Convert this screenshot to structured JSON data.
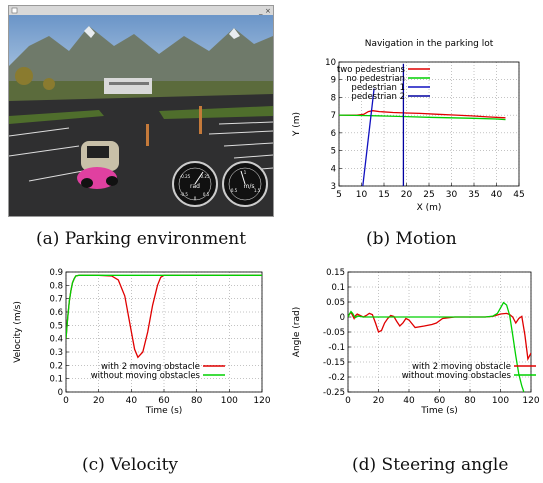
{
  "captions": {
    "a": "(a) Parking environment",
    "b": "(b) Motion",
    "c": "(c) Velocity",
    "d": "(d) Steering angle"
  },
  "sim": {
    "gauge_left": {
      "unit": "rad",
      "ticks": [
        "-0.25",
        "0.25",
        "-0.5",
        "0.5",
        "0"
      ]
    },
    "gauge_right": {
      "unit": "m/s",
      "ticks": [
        "1",
        "0.5",
        "1.5"
      ]
    }
  },
  "colors": {
    "red": "#e00000",
    "green": "#00d000",
    "blue": "#1010c0",
    "navy": "#0000a0"
  },
  "chart_data": [
    {
      "id": "motion",
      "type": "line",
      "title": "Navigation in the parking lot",
      "xlabel": "X (m)",
      "ylabel": "Y (m)",
      "xlim": [
        5,
        45
      ],
      "ylim": [
        3,
        10
      ],
      "xticks": [
        5,
        10,
        15,
        20,
        25,
        30,
        35,
        40,
        45
      ],
      "yticks": [
        3,
        4,
        5,
        6,
        7,
        8,
        9,
        10
      ],
      "grid": true,
      "legend": "top-right",
      "series": [
        {
          "name": "two pedestrians",
          "color": "#e00000",
          "x": [
            5,
            9,
            10.5,
            11.5,
            12.5,
            14,
            17,
            20,
            23,
            27,
            31,
            35,
            38,
            42
          ],
          "y": [
            7.0,
            7.0,
            7.05,
            7.2,
            7.25,
            7.2,
            7.15,
            7.12,
            7.1,
            7.05,
            7.0,
            6.95,
            6.9,
            6.85
          ]
        },
        {
          "name": "no pedestrian",
          "color": "#00d000",
          "x": [
            5,
            10,
            15,
            20,
            25,
            30,
            35,
            40,
            42
          ],
          "y": [
            7.0,
            6.98,
            6.95,
            6.92,
            6.88,
            6.85,
            6.82,
            6.78,
            6.75
          ]
        },
        {
          "name": "pedestrian 1",
          "color": "#1010c0",
          "x": [
            10.3,
            12.8
          ],
          "y": [
            3.0,
            8.5
          ]
        },
        {
          "name": "pedestrian 2",
          "color": "#0000a0",
          "x": [
            19.3,
            19.3
          ],
          "y": [
            3.0,
            9.9
          ]
        }
      ]
    },
    {
      "id": "velocity",
      "type": "line",
      "xlabel": "Time (s)",
      "ylabel": "Velocity (m/s)",
      "xlim": [
        0,
        120
      ],
      "ylim": [
        0,
        0.9
      ],
      "xticks": [
        0,
        20,
        40,
        60,
        80,
        100,
        120
      ],
      "yticks": [
        0,
        0.1,
        0.2,
        0.3,
        0.4,
        0.5,
        0.6,
        0.7,
        0.8,
        0.9
      ],
      "grid": true,
      "legend": "bottom-right",
      "series": [
        {
          "name": "with 2 moving obstacle",
          "color": "#e00000",
          "x": [
            0,
            1,
            2,
            3,
            4,
            5,
            6,
            8,
            10,
            20,
            28,
            32,
            36,
            39,
            42,
            44,
            47,
            50,
            53,
            56,
            58,
            60,
            70,
            80,
            90,
            100,
            110,
            120
          ],
          "y": [
            0.4,
            0.55,
            0.68,
            0.76,
            0.82,
            0.85,
            0.87,
            0.875,
            0.875,
            0.875,
            0.87,
            0.84,
            0.72,
            0.52,
            0.32,
            0.26,
            0.3,
            0.45,
            0.65,
            0.8,
            0.86,
            0.875,
            0.875,
            0.875,
            0.875,
            0.875,
            0.875,
            0.875
          ]
        },
        {
          "name": "without moving obstacles",
          "color": "#00d000",
          "x": [
            0,
            1,
            2,
            3,
            4,
            5,
            6,
            8,
            10,
            20,
            40,
            60,
            80,
            100,
            120
          ],
          "y": [
            0.4,
            0.55,
            0.68,
            0.76,
            0.82,
            0.85,
            0.87,
            0.875,
            0.875,
            0.875,
            0.875,
            0.875,
            0.875,
            0.875,
            0.875
          ]
        }
      ]
    },
    {
      "id": "steering",
      "type": "line",
      "xlabel": "Time (s)",
      "ylabel": "Angle (rad)",
      "xlim": [
        0,
        120
      ],
      "ylim": [
        -0.25,
        0.15
      ],
      "xticks": [
        0,
        20,
        40,
        60,
        80,
        100,
        120
      ],
      "yticks": [
        -0.25,
        -0.2,
        -0.15,
        -0.1,
        -0.05,
        0,
        0.05,
        0.1,
        0.15
      ],
      "grid": true,
      "legend": "bottom-right",
      "series": [
        {
          "name": "with 2 moving obstacle",
          "color": "#e00000",
          "x": [
            0,
            1,
            2,
            3,
            4,
            5,
            6,
            8,
            10,
            12,
            14,
            16,
            18,
            20,
            22,
            24,
            26,
            28,
            30,
            32,
            34,
            36,
            38,
            40,
            44,
            50,
            55,
            58,
            62,
            70,
            80,
            90,
            95,
            100,
            104,
            106,
            108,
            110,
            112,
            114,
            116,
            118,
            120
          ],
          "y": [
            0,
            0.01,
            0.015,
            0.005,
            -0.005,
            0.005,
            0.01,
            0.005,
            0,
            0.005,
            0.012,
            0.008,
            -0.02,
            -0.05,
            -0.045,
            -0.02,
            -0.005,
            0.005,
            0.002,
            -0.015,
            -0.03,
            -0.02,
            -0.005,
            -0.01,
            -0.035,
            -0.03,
            -0.025,
            -0.02,
            -0.005,
            0,
            0,
            0,
            0.002,
            0.01,
            0.012,
            0.008,
            0.0,
            -0.02,
            -0.005,
            0.002,
            -0.06,
            -0.14,
            -0.12
          ]
        },
        {
          "name": "without moving obstacles",
          "color": "#00d000",
          "x": [
            0,
            1,
            2,
            3,
            4,
            5,
            6,
            8,
            10,
            20,
            40,
            60,
            80,
            90,
            95,
            98,
            100,
            102,
            104,
            106,
            108,
            110,
            112,
            114,
            116
          ],
          "y": [
            0,
            0.01,
            0.018,
            0.012,
            0.003,
            -0.002,
            0.003,
            0.002,
            0,
            0,
            0,
            0,
            0,
            0,
            0.003,
            0.012,
            0.03,
            0.048,
            0.04,
            0.005,
            -0.06,
            -0.13,
            -0.19,
            -0.23,
            -0.26
          ]
        }
      ]
    }
  ]
}
